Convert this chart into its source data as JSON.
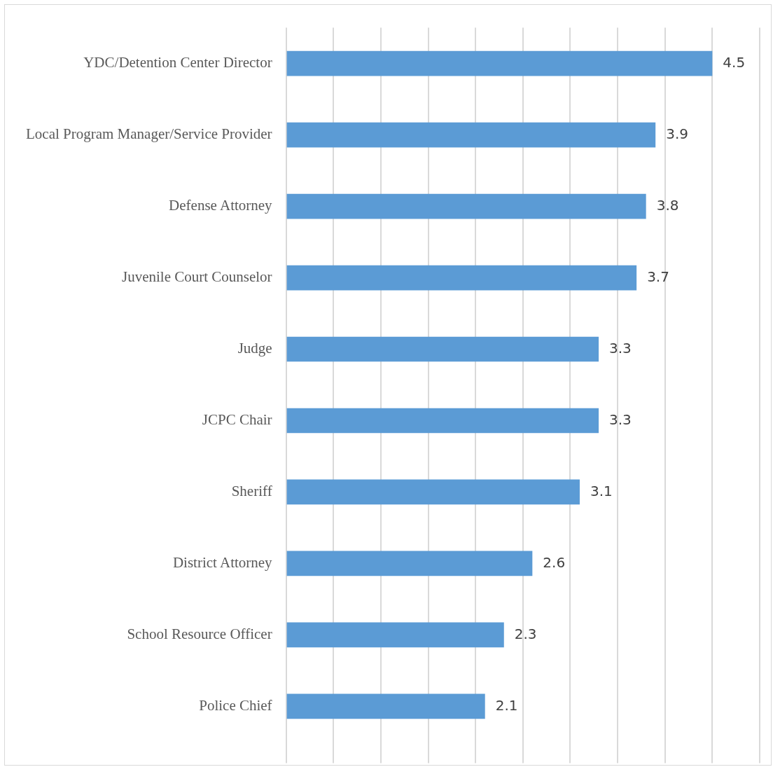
{
  "chart_data": {
    "type": "bar",
    "orientation": "horizontal",
    "categories": [
      "YDC/Detention Center Director",
      "Local Program Manager/Service Provider",
      "Defense Attorney",
      "Juvenile Court Counselor",
      "Judge",
      "JCPC Chair",
      "Sheriff",
      "District Attorney",
      "School Resource Officer",
      "Police Chief"
    ],
    "values": [
      4.5,
      3.9,
      3.8,
      3.7,
      3.3,
      3.3,
      3.1,
      2.6,
      2.3,
      2.1
    ],
    "color": "#5b9bd5",
    "xlim": [
      0,
      5
    ],
    "xticks": [
      {
        "value": 0,
        "label": null
      },
      {
        "value": 0.5,
        "label": null
      },
      {
        "value": 1,
        "label": null
      },
      {
        "value": 1.5,
        "label": null
      },
      {
        "value": 2,
        "label": null
      },
      {
        "value": 2.5,
        "label": null
      },
      {
        "value": 3,
        "label": null
      },
      {
        "value": 3.5,
        "label": null
      },
      {
        "value": 4,
        "label": null
      },
      {
        "value": 4.5,
        "label": null
      },
      {
        "value": 5,
        "label": null
      }
    ],
    "grid": "x",
    "tick_labels": "y",
    "data_labels": true,
    "legend": false
  }
}
